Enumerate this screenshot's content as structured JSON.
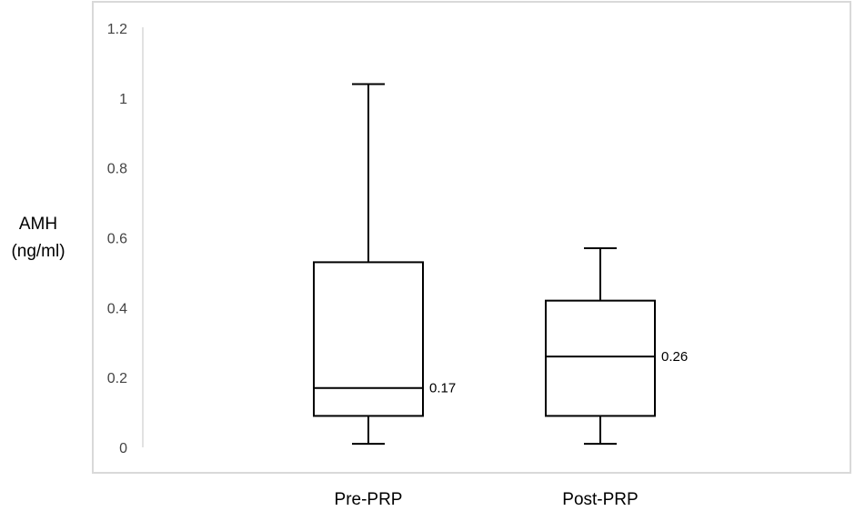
{
  "chart_data": {
    "type": "box",
    "title": "",
    "xlabel": "",
    "ylabel": [
      "AMH",
      "(ng/ml)"
    ],
    "ylim": [
      0,
      1.2
    ],
    "yticks": [
      "0",
      "0.2",
      "0.4",
      "0.6",
      "0.8",
      "1",
      "1.2"
    ],
    "grid": false,
    "categories": [
      "Pre-PRP",
      "Post-PRP"
    ],
    "series": [
      {
        "name": "Pre-PRP",
        "min": 0.01,
        "q1": 0.09,
        "median": 0.17,
        "q3": 0.53,
        "max": 1.04,
        "median_label": "0.17"
      },
      {
        "name": "Post-PRP",
        "min": 0.01,
        "q1": 0.09,
        "median": 0.26,
        "q3": 0.42,
        "max": 0.57,
        "median_label": "0.26"
      }
    ]
  }
}
